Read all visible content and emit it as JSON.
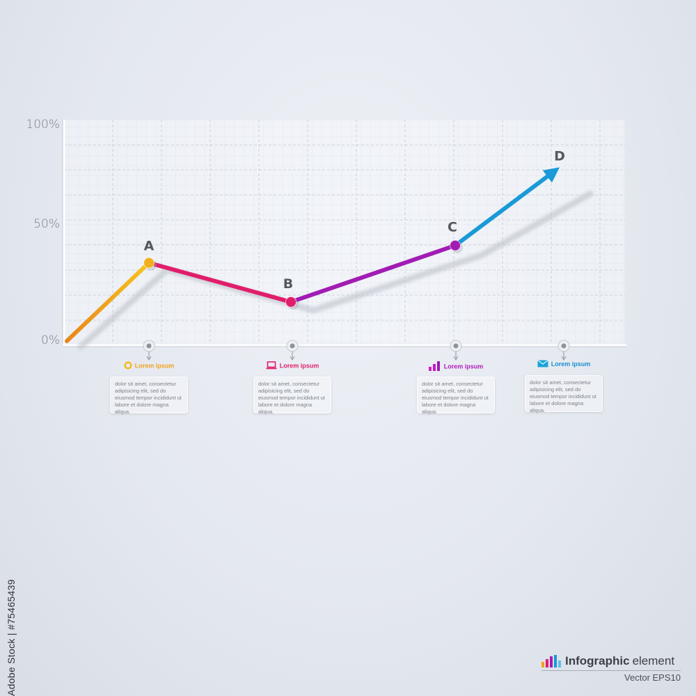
{
  "chart_data": {
    "type": "line",
    "ylim": [
      0,
      100
    ],
    "yticks": [
      "100%",
      "50%",
      "0%"
    ],
    "x": [
      0,
      1,
      2,
      3,
      4
    ],
    "values": [
      0,
      36,
      18,
      44,
      80
    ],
    "point_labels": [
      "",
      "A",
      "B",
      "C",
      "D"
    ],
    "segment_colors": [
      "#f0a21a",
      "#e01e6b",
      "#a21cb4",
      "#1a9ad6"
    ],
    "grid": true
  },
  "info_items": [
    {
      "title": "Lorem ipsum",
      "icon": "ring-icon",
      "color": "#f0a21a",
      "text": "dolor sit amet, consectetur adipisicing elit, sed do eiusmod tempor incididunt ut labore et dolore magna aliqua."
    },
    {
      "title": "Lorem ipsum",
      "icon": "laptop-icon",
      "color": "#e01e6b",
      "text": "dolor sit amet, consectetur adipisicing elit, sed do eiusmod tempor incididunt ut labore et dolore magna aliqua."
    },
    {
      "title": "Lorem ipsum",
      "icon": "bar-chart-icon",
      "color": "#c21cc4",
      "text": "dolor sit amet, consectetur adipisicing elit, sed do eiusmod tempor incididunt ut labore et dolore magna aliqua."
    },
    {
      "title": "Lorem ipsum",
      "icon": "envelope-icon",
      "color": "#1a9ad6",
      "text": "dolor sit amet, consectetur adipisicing elit, sed do eiusmod tempor incididunt ut labore et dolore magna aliqua."
    }
  ],
  "stock_caption": "Adobe Stock | #75465439",
  "brand": {
    "title_bold": "Infographic",
    "title_rest": "element",
    "subtitle": "Vector EPS10"
  }
}
